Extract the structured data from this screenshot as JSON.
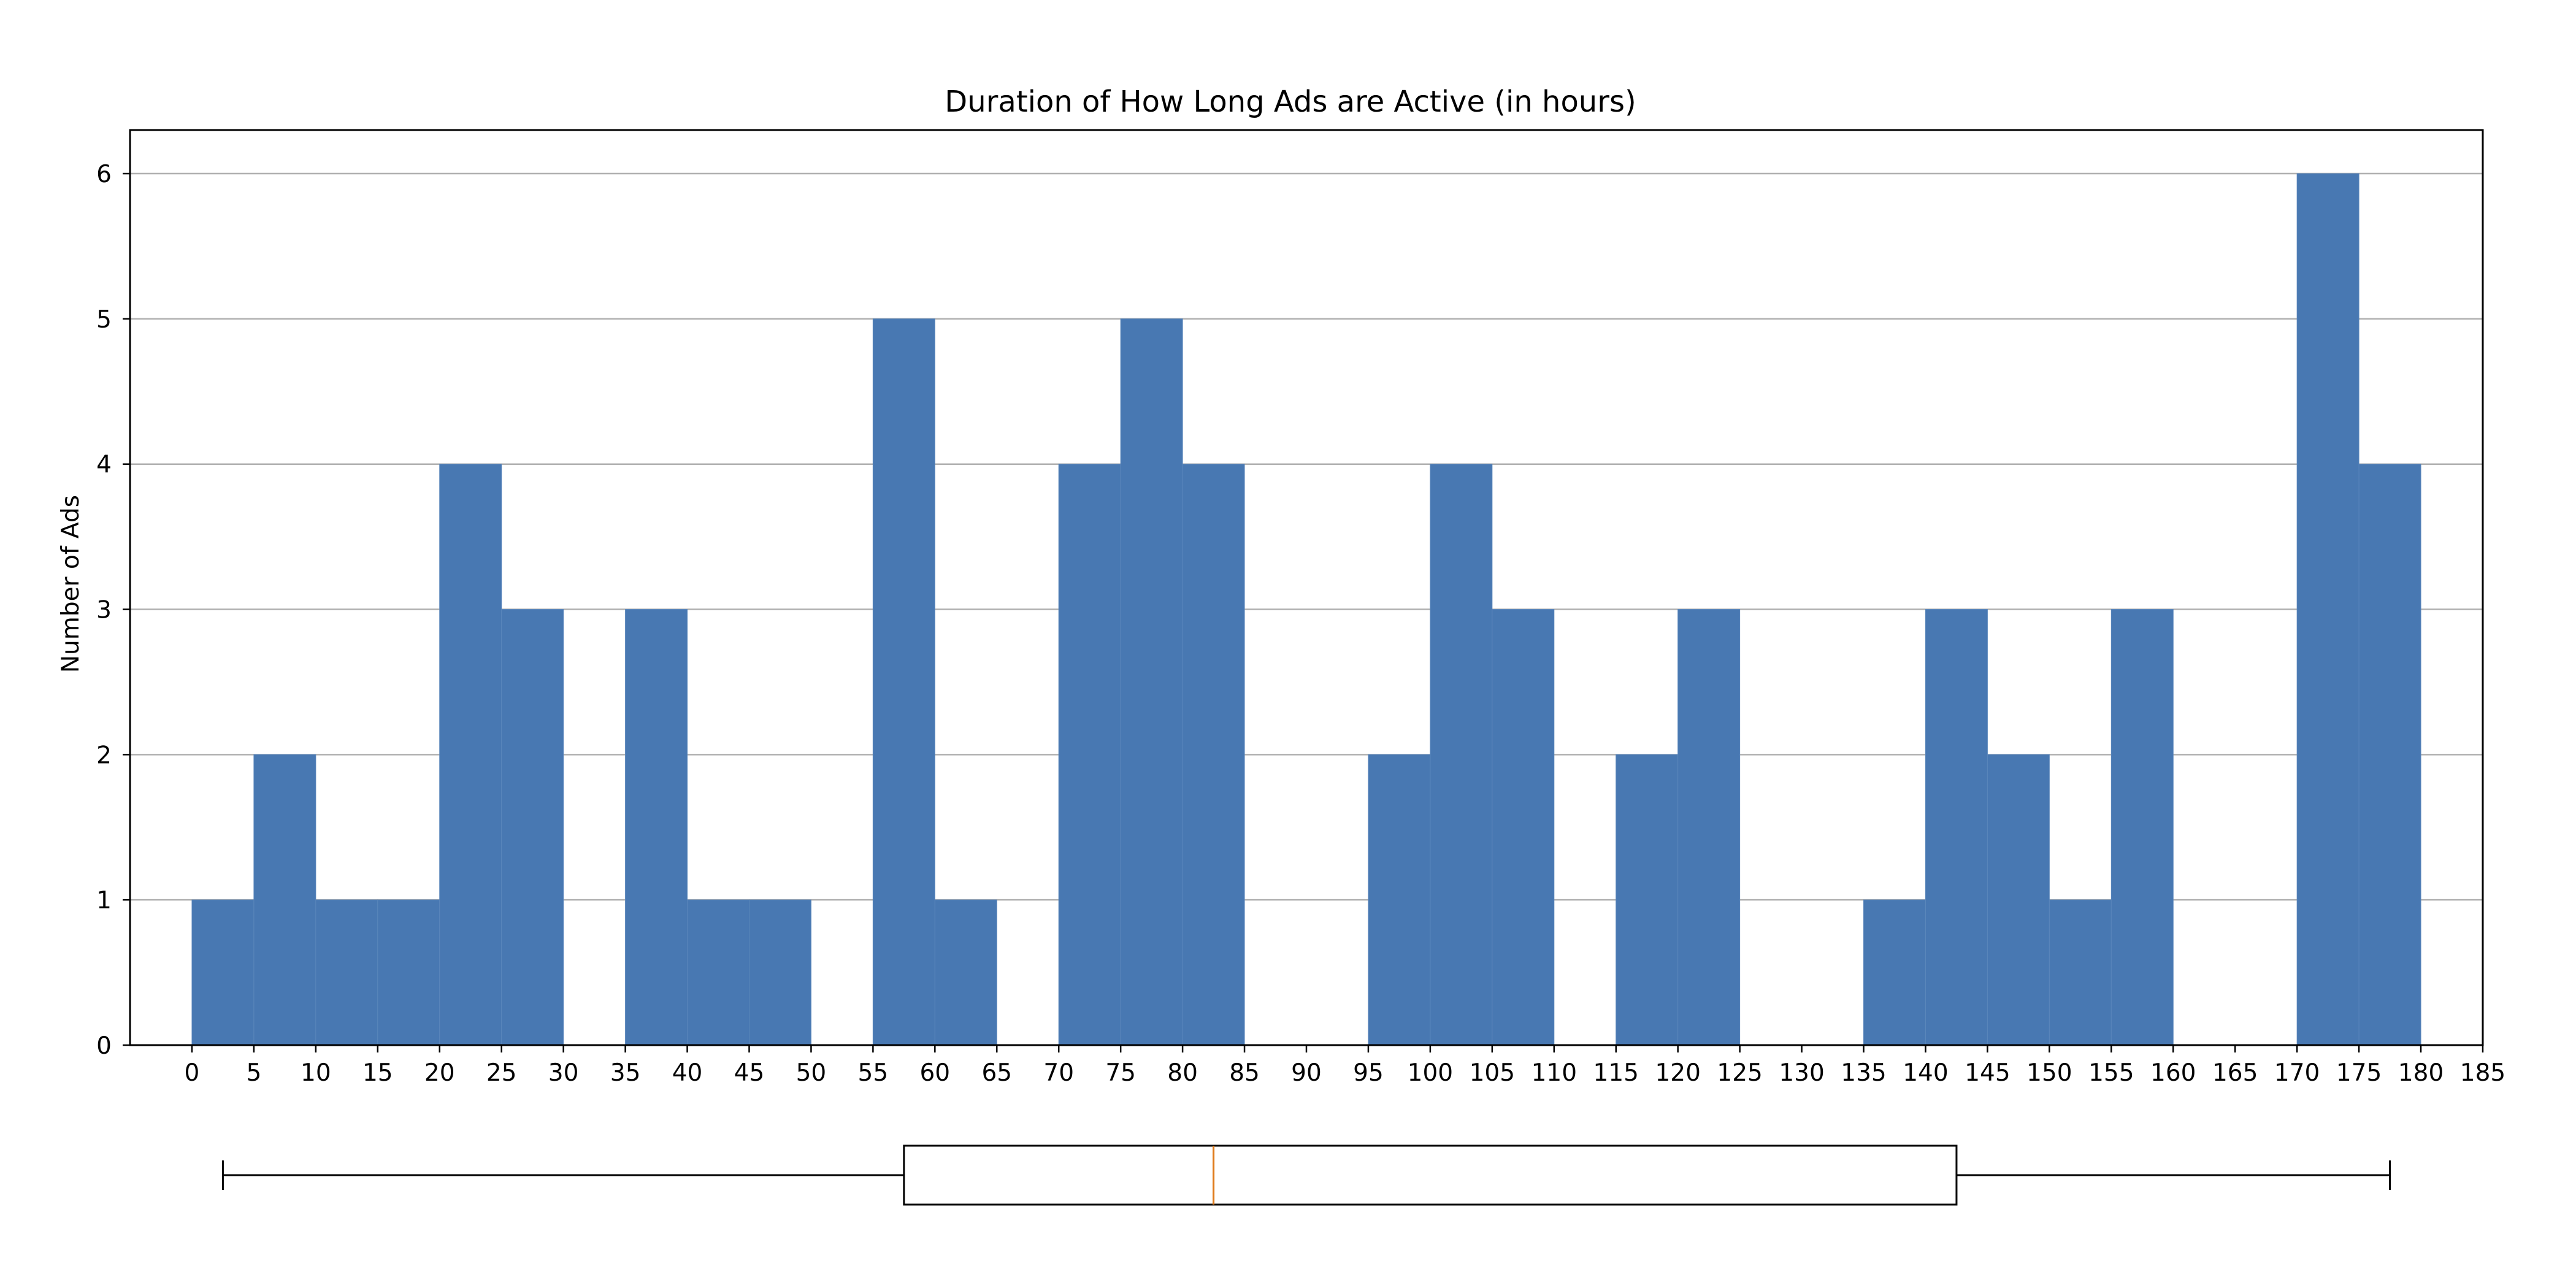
{
  "chart_data": [
    {
      "type": "bar",
      "subtype": "histogram",
      "title": "Duration of How Long Ads are Active (in hours)",
      "xlabel": "",
      "ylabel": "Number of Ads",
      "xlim": [
        -5,
        185
      ],
      "ylim": [
        0,
        6.3
      ],
      "xticks": [
        0,
        5,
        10,
        15,
        20,
        25,
        30,
        35,
        40,
        45,
        50,
        55,
        60,
        65,
        70,
        75,
        80,
        85,
        90,
        95,
        100,
        105,
        110,
        115,
        120,
        125,
        130,
        135,
        140,
        145,
        150,
        155,
        160,
        165,
        170,
        175,
        180,
        185
      ],
      "yticks": [
        0,
        1,
        2,
        3,
        4,
        5,
        6
      ],
      "grid": "horizontal",
      "bar_color": "#4878b2",
      "bin_width": 5,
      "bins": [
        {
          "start": 0,
          "count": 1
        },
        {
          "start": 5,
          "count": 2
        },
        {
          "start": 10,
          "count": 1
        },
        {
          "start": 15,
          "count": 1
        },
        {
          "start": 20,
          "count": 4
        },
        {
          "start": 25,
          "count": 3
        },
        {
          "start": 30,
          "count": 0
        },
        {
          "start": 35,
          "count": 3
        },
        {
          "start": 40,
          "count": 1
        },
        {
          "start": 45,
          "count": 1
        },
        {
          "start": 50,
          "count": 0
        },
        {
          "start": 55,
          "count": 5
        },
        {
          "start": 60,
          "count": 1
        },
        {
          "start": 65,
          "count": 0
        },
        {
          "start": 70,
          "count": 4
        },
        {
          "start": 75,
          "count": 5
        },
        {
          "start": 80,
          "count": 4
        },
        {
          "start": 85,
          "count": 0
        },
        {
          "start": 90,
          "count": 0
        },
        {
          "start": 95,
          "count": 2
        },
        {
          "start": 100,
          "count": 4
        },
        {
          "start": 105,
          "count": 3
        },
        {
          "start": 110,
          "count": 0
        },
        {
          "start": 115,
          "count": 2
        },
        {
          "start": 120,
          "count": 3
        },
        {
          "start": 125,
          "count": 0
        },
        {
          "start": 130,
          "count": 0
        },
        {
          "start": 135,
          "count": 1
        },
        {
          "start": 140,
          "count": 3
        },
        {
          "start": 145,
          "count": 2
        },
        {
          "start": 150,
          "count": 1
        },
        {
          "start": 155,
          "count": 3
        },
        {
          "start": 160,
          "count": 0
        },
        {
          "start": 165,
          "count": 0
        },
        {
          "start": 170,
          "count": 6
        },
        {
          "start": 175,
          "count": 4
        }
      ]
    },
    {
      "type": "boxplot",
      "orientation": "horizontal",
      "whisker_low": 2.5,
      "q1": 57.5,
      "median": 82.5,
      "q3": 142.5,
      "whisker_high": 177.5,
      "median_color": "#e07b1a"
    }
  ]
}
